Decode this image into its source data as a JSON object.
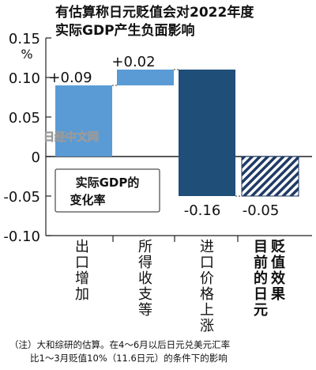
{
  "title_lines": [
    "有估算称日元贬值会对2022年度",
    "实际GDP产生负面影响"
  ],
  "watermark": "日经中文网",
  "footnote_lines": [
    "（注）大和综研的估算。在4～6月以后日元兑美元汇率",
    "比1～3月贬值10%（11.6日元）的条件下的影响"
  ],
  "chart_data": {
    "type": "bar",
    "subtype": "waterfall",
    "title": "有估算称日元贬值会对2022年度实际GDP产生负面影响",
    "ylabel": "%",
    "legend_label": "实际GDP的变化率",
    "ylim": [
      -0.1,
      0.15
    ],
    "yticks": [
      0.15,
      0.1,
      0.05,
      0,
      -0.05,
      -0.1
    ],
    "ytick_labels": [
      "0.15",
      "0.10",
      "0.05",
      "0",
      "-0.05",
      "-0.10"
    ],
    "grid": false,
    "categories": [
      "出口增加",
      "所得收支等",
      "进口价格上涨",
      "目前的日元贬值效果"
    ],
    "category_lines": [
      [
        "出口",
        "增加"
      ],
      [
        "所得",
        "收支等"
      ],
      [
        "进口",
        "价格",
        "上涨"
      ],
      [
        "贬值",
        "效果",
        "目前",
        "的日元"
      ]
    ],
    "values": [
      0.09,
      0.02,
      -0.16,
      -0.05
    ],
    "value_labels": [
      "+0.09",
      "+0.02",
      "-0.16",
      "-0.05"
    ],
    "colors": {
      "positive": "#5a9bd5",
      "negative": "#1f4e79",
      "total_hatch": "#1f3a66"
    }
  }
}
